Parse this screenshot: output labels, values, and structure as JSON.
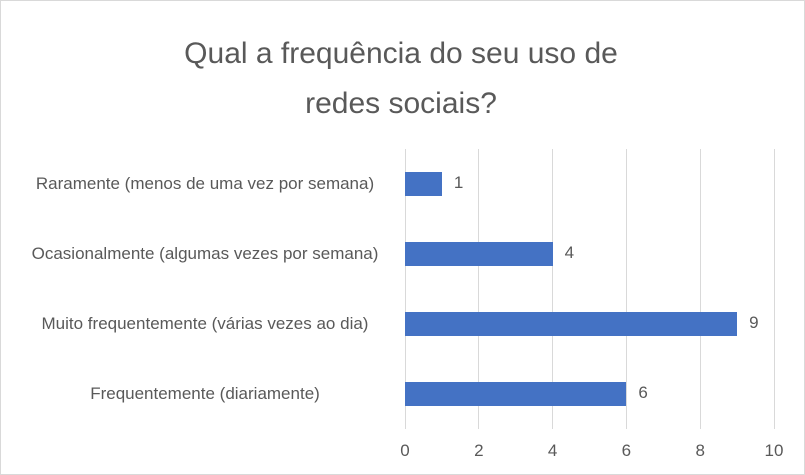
{
  "chart_data": {
    "type": "bar",
    "orientation": "horizontal",
    "title": "Qual a frequência do seu uso de redes sociais?",
    "categories": [
      "Raramente (menos de uma vez por semana)",
      "Ocasionalmente (algumas vezes por semana)",
      "Muito frequentemente (várias vezes ao dia)",
      "Frequentemente (diariamente)"
    ],
    "values": [
      1,
      4,
      9,
      6
    ],
    "color": "#4472c4",
    "xlim": [
      0,
      10
    ],
    "xticks": [
      0,
      2,
      4,
      6,
      8,
      10
    ],
    "grid": true
  }
}
